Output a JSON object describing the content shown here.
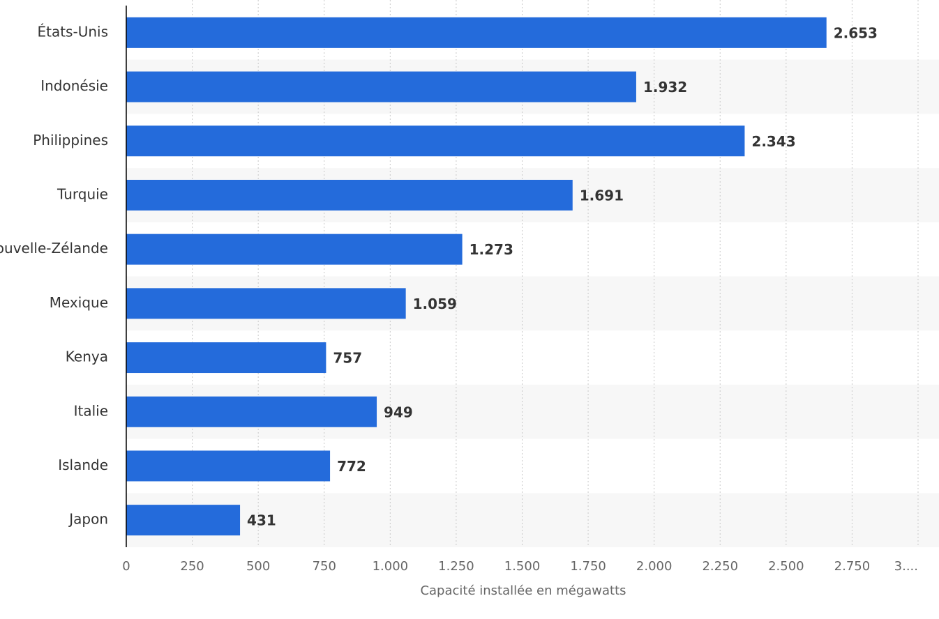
{
  "chart_data": {
    "type": "bar",
    "orientation": "horizontal",
    "x_label": "Capacité installée en mégawatts",
    "categories": [
      "États-Unis",
      "Indonésie",
      "Philippines",
      "Turquie",
      "Nouvelle-Zélande",
      "Mexique",
      "Kenya",
      "Italie",
      "Islande",
      "Japon"
    ],
    "values": [
      2653,
      1932,
      2343,
      1691,
      1273,
      1059,
      757,
      949,
      772,
      431
    ],
    "value_labels": [
      "2.653",
      "1.932",
      "2.343",
      "1.691",
      "1.273",
      "1.059",
      "757",
      "949",
      "772",
      "431"
    ],
    "color": "#246bdb",
    "xlim": [
      0,
      3000
    ],
    "xticks": [
      0,
      250,
      500,
      750,
      {
        "value": 1000,
        "label": "1.000"
      },
      {
        "value": 1250,
        "label": "1.250"
      },
      {
        "value": 1500,
        "label": "1.500"
      },
      {
        "value": 1750,
        "label": "1.750"
      },
      {
        "value": 2000,
        "label": "2.000"
      },
      {
        "value": 2250,
        "label": "2.250"
      },
      {
        "value": 2500,
        "label": "2.500"
      },
      {
        "value": 2750,
        "label": "2.750"
      },
      {
        "value": 3000,
        "label": "3...."
      }
    ],
    "grid": true
  }
}
